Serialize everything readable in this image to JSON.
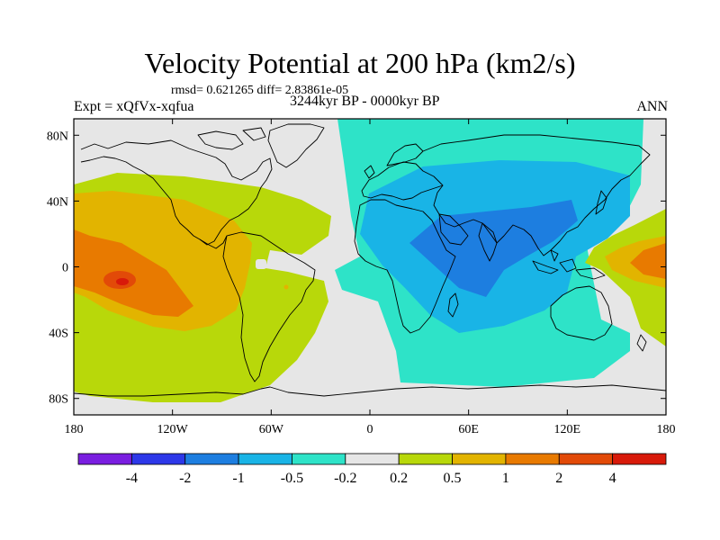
{
  "figure": {
    "title": "Velocity Potential at 200 hPa (km2/s)",
    "stats": "rmsd= 0.621265 diff= 2.83861e-05",
    "left_label": "Expt = xQfVx-xqfua",
    "center_label": "3244kyr BP - 0000kyr BP",
    "right_label": "ANN"
  },
  "axes": {
    "lat_ticks": [
      {
        "label": "80N",
        "value": 80
      },
      {
        "label": "40N",
        "value": 40
      },
      {
        "label": "0",
        "value": 0
      },
      {
        "label": "40S",
        "value": -40
      },
      {
        "label": "80S",
        "value": -80
      }
    ],
    "lon_ticks": [
      {
        "label": "180",
        "value": -180
      },
      {
        "label": "120W",
        "value": -120
      },
      {
        "label": "60W",
        "value": -60
      },
      {
        "label": "0",
        "value": 0
      },
      {
        "label": "60E",
        "value": 60
      },
      {
        "label": "120E",
        "value": 120
      },
      {
        "label": "180",
        "value": 180
      }
    ]
  },
  "colorbar": {
    "colors": [
      "#7a1ee0",
      "#2d38e8",
      "#1d7ee0",
      "#19b4e6",
      "#2ee3c8",
      "#e6e6e6",
      "#b8d80a",
      "#e2b400",
      "#e87a00",
      "#e24a08",
      "#d81a0a"
    ],
    "labels": [
      "-4",
      "-2",
      "-1",
      "-0.5",
      "-0.2",
      "0.2",
      "0.5",
      "1",
      "2",
      "4"
    ]
  },
  "chart_data": {
    "type": "contour_map",
    "title": "Velocity Potential at 200 hPa (km2/s)",
    "variable": "velocity potential difference",
    "units": "km2/s",
    "levels": [
      -4,
      -2,
      -1,
      -0.5,
      -0.2,
      0.2,
      0.5,
      1,
      2,
      4
    ],
    "lon_range": [
      -180,
      180
    ],
    "lat_range": [
      -90,
      90
    ],
    "features": [
      {
        "name": "east-pacific-positive",
        "center_lon": -157,
        "center_lat": -6,
        "peak_value": 2.5
      },
      {
        "name": "indian-ocean-negative",
        "center_lon": 70,
        "center_lat": 10,
        "peak_value": -1.2
      },
      {
        "name": "west-pacific-positive",
        "center_lon": 175,
        "center_lat": 0,
        "peak_value": 1.5
      }
    ]
  }
}
